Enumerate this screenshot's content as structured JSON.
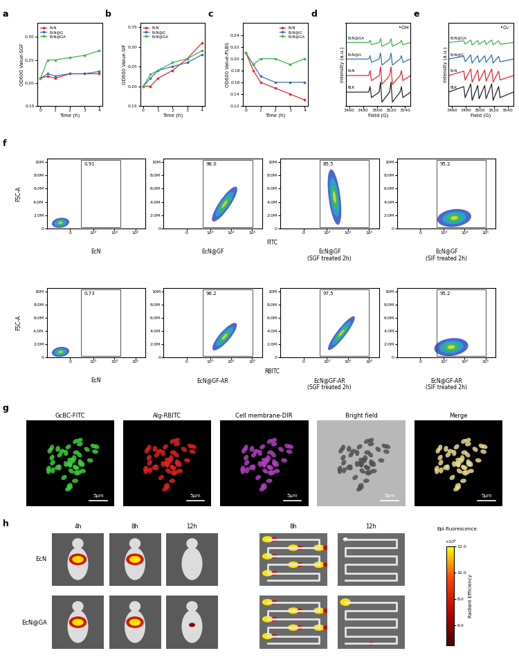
{
  "panel_labels": [
    "a",
    "b",
    "c",
    "d",
    "e",
    "f",
    "g",
    "h"
  ],
  "chart_data": [
    {
      "type": "line",
      "xlabel": "Time (h)",
      "ylabel": "OD600 Value-SGF",
      "x": [
        0,
        0.5,
        1,
        2,
        3,
        4
      ],
      "xlim": [
        -0.2,
        4.2
      ],
      "xticks": [
        0,
        1,
        2,
        3,
        4
      ],
      "ylim": [
        0.15,
        0.33
      ],
      "yticks": [
        0.15,
        {
          "value": 0.2,
          "label": "0.20"
        },
        0.25,
        {
          "value": 0.3,
          "label": "0.30"
        }
      ],
      "legend": "upper left",
      "series": [
        {
          "name": "EcN",
          "color": "#e8242b",
          "marker": "square",
          "values": [
            0.21,
            0.215,
            0.21,
            0.22,
            0.22,
            0.22
          ]
        },
        {
          "name": "EcN@G",
          "color": "#2f6db5",
          "marker": "square",
          "values": [
            0.21,
            0.22,
            0.215,
            0.22,
            0.22,
            0.225
          ]
        },
        {
          "name": "EcN@GA",
          "color": "#3cb34a",
          "marker": "square",
          "values": [
            0.21,
            0.25,
            0.25,
            0.255,
            0.26,
            0.27
          ]
        }
      ]
    },
    {
      "type": "line",
      "xlabel": "Time (h)",
      "ylabel": "OD600 Value-SIF",
      "x": [
        0,
        0.5,
        1,
        2,
        3,
        4
      ],
      "xlim": [
        -0.2,
        4.2
      ],
      "xticks": [
        0,
        1,
        2,
        3,
        4
      ],
      "ylim": [
        0.15,
        0.36
      ],
      "yticks": [
        0.15,
        {
          "value": 0.2,
          "label": "0.20"
        },
        0.25,
        {
          "value": 0.3,
          "label": "0.30"
        },
        0.35
      ],
      "legend": "upper left",
      "series": [
        {
          "name": "EcN",
          "color": "#e8242b",
          "marker": "square",
          "values": [
            0.2,
            0.2,
            0.22,
            0.24,
            0.27,
            0.31
          ]
        },
        {
          "name": "EcN@G",
          "color": "#2f6db5",
          "marker": "square",
          "values": [
            0.2,
            0.22,
            0.24,
            0.25,
            0.26,
            0.28
          ]
        },
        {
          "name": "EcN@GA",
          "color": "#3cb34a",
          "marker": "square",
          "values": [
            0.2,
            0.23,
            0.24,
            0.26,
            0.27,
            0.29
          ]
        }
      ]
    },
    {
      "type": "line",
      "xlabel": "Time (h)",
      "ylabel": "OD600 Value-PLBS",
      "x": [
        0,
        0.5,
        1,
        2,
        3,
        4
      ],
      "xlim": [
        -0.2,
        4.2
      ],
      "xticks": [
        0,
        1,
        2,
        3,
        4
      ],
      "ylim": [
        0.12,
        0.26
      ],
      "yticks": [
        0.12,
        0.14,
        0.16,
        0.18,
        {
          "value": 0.2,
          "label": "0.20"
        },
        0.22,
        0.24
      ],
      "legend": "upper right",
      "series": [
        {
          "name": "EcN",
          "color": "#e8242b",
          "marker": "square",
          "values": [
            0.21,
            0.18,
            0.16,
            0.15,
            0.14,
            0.13
          ]
        },
        {
          "name": "EcN@G",
          "color": "#2f6db5",
          "marker": "square",
          "values": [
            0.21,
            0.19,
            0.17,
            0.16,
            0.16,
            0.16
          ]
        },
        {
          "name": "EcN@GA",
          "color": "#3cb34a",
          "marker": "square",
          "values": [
            0.21,
            0.19,
            0.2,
            0.2,
            0.19,
            0.2
          ]
        }
      ]
    },
    {
      "type": "line",
      "xlabel": "Field (G)",
      "ylabel": "Intensity (a.u.)",
      "annotation": "•OH",
      "x": [
        3455,
        3488,
        3490,
        3492,
        3503,
        3505,
        3507,
        3518,
        3520,
        3522,
        3533,
        3535,
        3537,
        3548
      ],
      "xlim": [
        3455,
        3548
      ],
      "xticks": [
        3460,
        3480,
        3500,
        3520,
        3540
      ],
      "ylim": [
        -2.5,
        12.5
      ],
      "tick_labels": "x",
      "series": [
        {
          "name": "EcN@GA",
          "color": "#3cb34a",
          "values": [
            9,
            9,
            9.4,
            8.6,
            9,
            9.7,
            8.3,
            9,
            9.7,
            8.3,
            9,
            9.4,
            8.6,
            9
          ]
        },
        {
          "name": "EcN@G",
          "color": "#2f6db5",
          "values": [
            6,
            6,
            6.6,
            5.4,
            6,
            7.1,
            4.9,
            6,
            7.1,
            4.9,
            6,
            6.6,
            5.4,
            6
          ]
        },
        {
          "name": "EcN",
          "color": "#e8242b",
          "values": [
            3,
            3,
            3.9,
            2.1,
            3,
            4.6,
            1.4,
            3,
            4.6,
            1.4,
            3,
            3.9,
            2.1,
            3
          ]
        },
        {
          "name": "BLK",
          "color": "#222222",
          "values": [
            0,
            0,
            1.0,
            -1.0,
            0,
            1.8,
            -1.8,
            0,
            1.8,
            -1.8,
            0,
            1.0,
            -1.0,
            0
          ]
        }
      ]
    },
    {
      "type": "line",
      "xlabel": "Field (G)",
      "ylabel": "Intensity (a.u.)",
      "annotation": "•O₂⁻",
      "x": [
        3455,
        3477,
        3479,
        3487,
        3489,
        3497,
        3499,
        3507,
        3509,
        3517,
        3519,
        3527,
        3529,
        3548
      ],
      "xlim": [
        3455,
        3548
      ],
      "xticks": [
        3460,
        3480,
        3500,
        3520,
        3540
      ],
      "ylim": [
        -2.5,
        12.5
      ],
      "tick_labels": "x",
      "series": [
        {
          "name": "EcN@GA",
          "color": "#3cb34a",
          "values": [
            9,
            9.3,
            8.7,
            9.45,
            8.55,
            9.35,
            8.65,
            9.35,
            8.65,
            9.45,
            8.55,
            9.3,
            8.7,
            9
          ]
        },
        {
          "name": "EcN@G",
          "color": "#2f6db5",
          "values": [
            6,
            6.5,
            5.5,
            6.75,
            5.25,
            6.6,
            5.4,
            6.6,
            5.4,
            6.75,
            5.25,
            6.5,
            5.5,
            6
          ]
        },
        {
          "name": "EcN",
          "color": "#e8242b",
          "values": [
            3,
            3.8,
            2.2,
            4.2,
            1.8,
            4,
            2,
            4,
            2,
            4.2,
            1.8,
            3.8,
            2.2,
            3
          ]
        },
        {
          "name": "BLK",
          "color": "#222222",
          "values": [
            0,
            1,
            -1,
            1.5,
            -1.5,
            1.2,
            -1.2,
            1.2,
            -1.2,
            1.5,
            -1.5,
            1,
            -1,
            0
          ]
        }
      ]
    }
  ],
  "flow_cytometry": {
    "y_label": "FSC-A",
    "ylim": [
      0,
      10500000
    ],
    "yticks": [
      0,
      {
        "value": 2000000,
        "label": "2.0M"
      },
      {
        "value": 4000000,
        "label": "4.0M"
      },
      {
        "value": 6000000,
        "label": "6.0M"
      },
      {
        "value": 8000000,
        "label": "8.0M"
      },
      {
        "value": 10000000,
        "label": "10M"
      }
    ],
    "xlim": [
      -1000,
      300000
    ],
    "xticks": [
      0,
      {
        "value": 1000,
        "label": "10³"
      },
      {
        "value": 10000,
        "label": "10⁴"
      },
      {
        "value": 100000,
        "label": "10⁵"
      }
    ],
    "rows": [
      {
        "x_label": "FITC",
        "panels": [
          {
            "name": "EcN",
            "gate": "0.91"
          },
          {
            "name": "EcN@GF",
            "gate": "98.0"
          },
          {
            "name": "EcN@GF\n(SGF treated 2h)",
            "gate": "85.5"
          },
          {
            "name": "EcN@GF\n(SIF treated 2h)",
            "gate": "95.2"
          }
        ]
      },
      {
        "x_label": "RBITC",
        "panels": [
          {
            "name": "EcN",
            "gate": "0.73"
          },
          {
            "name": "EcN@GF-AR",
            "gate": "96.2"
          },
          {
            "name": "EcN@GF-AR\n(SGF treated 2h)",
            "gate": "97.5"
          },
          {
            "name": "EcN@GF-AR\n(SIF treated 2h)",
            "gate": "95.2"
          }
        ]
      }
    ]
  },
  "microscopy": {
    "scale_bar": "5μm",
    "panels": [
      {
        "title": "GcBC-FITC",
        "color": "#3ccf3c",
        "background": "#000000"
      },
      {
        "title": "Alg-RBITC",
        "color": "#dd2222",
        "background": "#000000"
      },
      {
        "title": "Cell membrane-DIR",
        "color": "#b040c0",
        "background": "#000000"
      },
      {
        "title": "Bright field",
        "color": "#505050",
        "background": "#b8b8b8"
      },
      {
        "title": "Merge",
        "color": "#e8d890",
        "background": "#000000"
      }
    ]
  },
  "imaging": {
    "groups": [
      "EcN",
      "EcN@GA"
    ],
    "whole_body_times": [
      "4h",
      "8h",
      "12h"
    ],
    "intestine_times": [
      "8h",
      "12h"
    ],
    "colorbar": {
      "title": "Epi-fluorescence",
      "label": "Radiant Efficiency",
      "scale": "×10⁸",
      "range": [
        4.5,
        12.0
      ],
      "ticks": [
        {
          "value": 6,
          "label": "6.0"
        },
        {
          "value": 8,
          "label": "8.0"
        },
        {
          "value": 10,
          "label": "10.0"
        },
        {
          "value": 12,
          "label": "12.0"
        }
      ]
    }
  }
}
